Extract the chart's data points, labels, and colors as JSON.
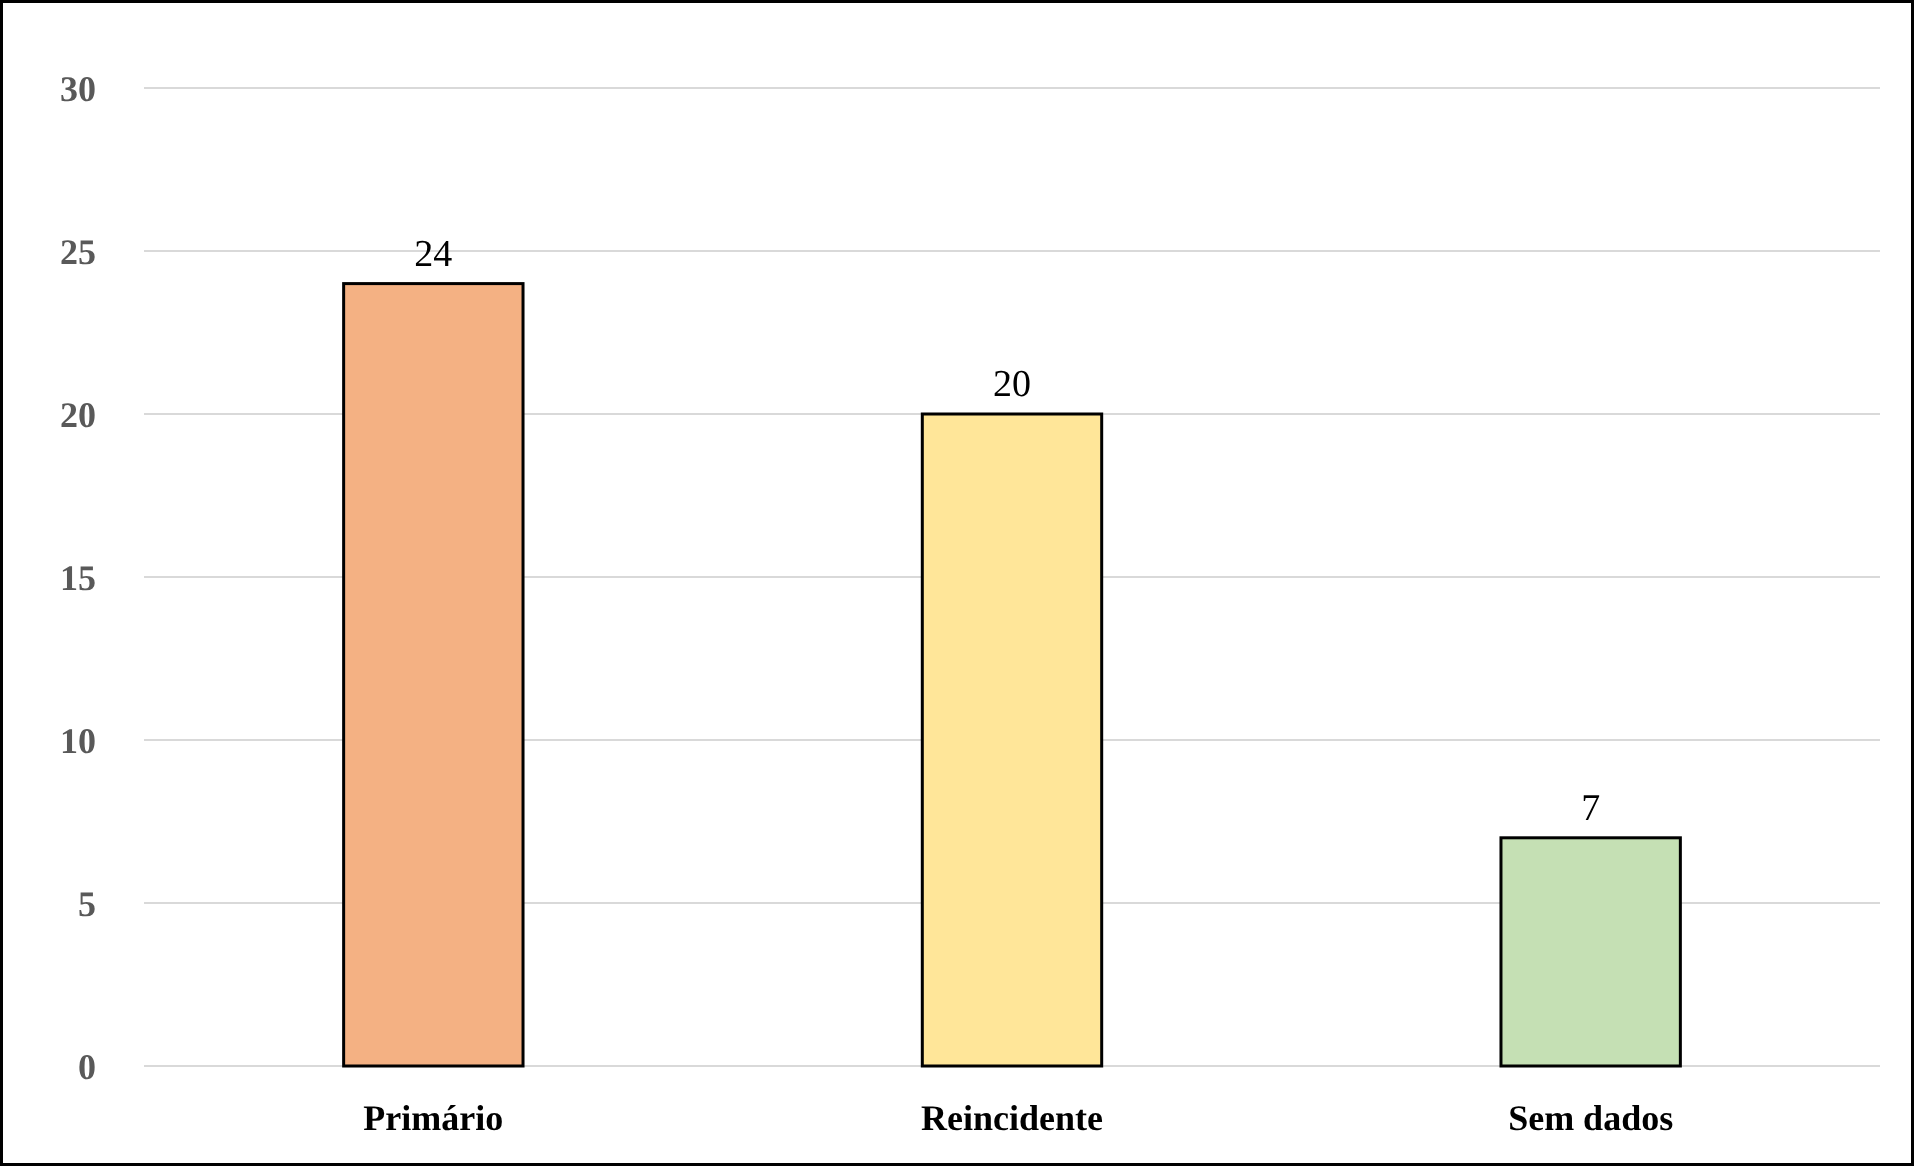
{
  "chart_data": {
    "type": "bar",
    "categories": [
      "Primário",
      "Reincidente",
      "Sem dados"
    ],
    "values": [
      24,
      20,
      7
    ],
    "colors": [
      "#f4b183",
      "#ffe699",
      "#c5e0b4"
    ],
    "ylim": [
      0,
      30
    ],
    "yticks": [
      0,
      5,
      10,
      15,
      20,
      25,
      30
    ],
    "grid": "y",
    "data_labels": true
  }
}
